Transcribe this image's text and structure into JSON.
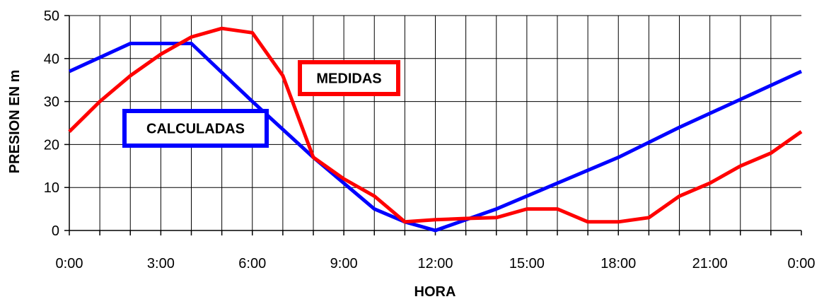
{
  "chart_data": {
    "type": "line",
    "xlabel": "HORA",
    "ylabel": "PRESION EN m",
    "x_unit": "hours",
    "xlim": [
      0,
      24
    ],
    "ylim": [
      0,
      50
    ],
    "x_ticks": [
      0,
      3,
      6,
      9,
      12,
      15,
      18,
      21,
      24
    ],
    "x_tick_labels": [
      "0:00",
      "3:00",
      "6:00",
      "9:00",
      "12:00",
      "15:00",
      "18:00",
      "21:00",
      "0:00"
    ],
    "y_ticks": [
      0,
      10,
      20,
      30,
      40,
      50
    ],
    "y_tick_labels": [
      "0",
      "10",
      "20",
      "30",
      "40",
      "50"
    ],
    "grid": true,
    "series": [
      {
        "name": "CALCULADAS",
        "color": "#0000ff",
        "x": [
          0,
          2,
          4,
          6,
          8,
          10,
          11,
          12,
          14,
          16,
          18,
          20,
          22,
          24
        ],
        "values": [
          37,
          43.5,
          43.5,
          30,
          17,
          5,
          2,
          0,
          5,
          11,
          17,
          24,
          30.5,
          37
        ]
      },
      {
        "name": "MEDIDAS",
        "color": "#ff0000",
        "x": [
          0,
          1,
          2,
          3,
          4,
          5,
          6,
          7,
          8,
          9,
          10,
          11,
          12,
          13,
          14,
          15,
          16,
          17,
          18,
          19,
          20,
          21,
          22,
          23,
          24
        ],
        "values": [
          23,
          30,
          36,
          41,
          45,
          47,
          46,
          36,
          17,
          12,
          8,
          2,
          2.5,
          2.8,
          3,
          5,
          5,
          2,
          2,
          3,
          8,
          11,
          15,
          18,
          23
        ]
      }
    ]
  }
}
